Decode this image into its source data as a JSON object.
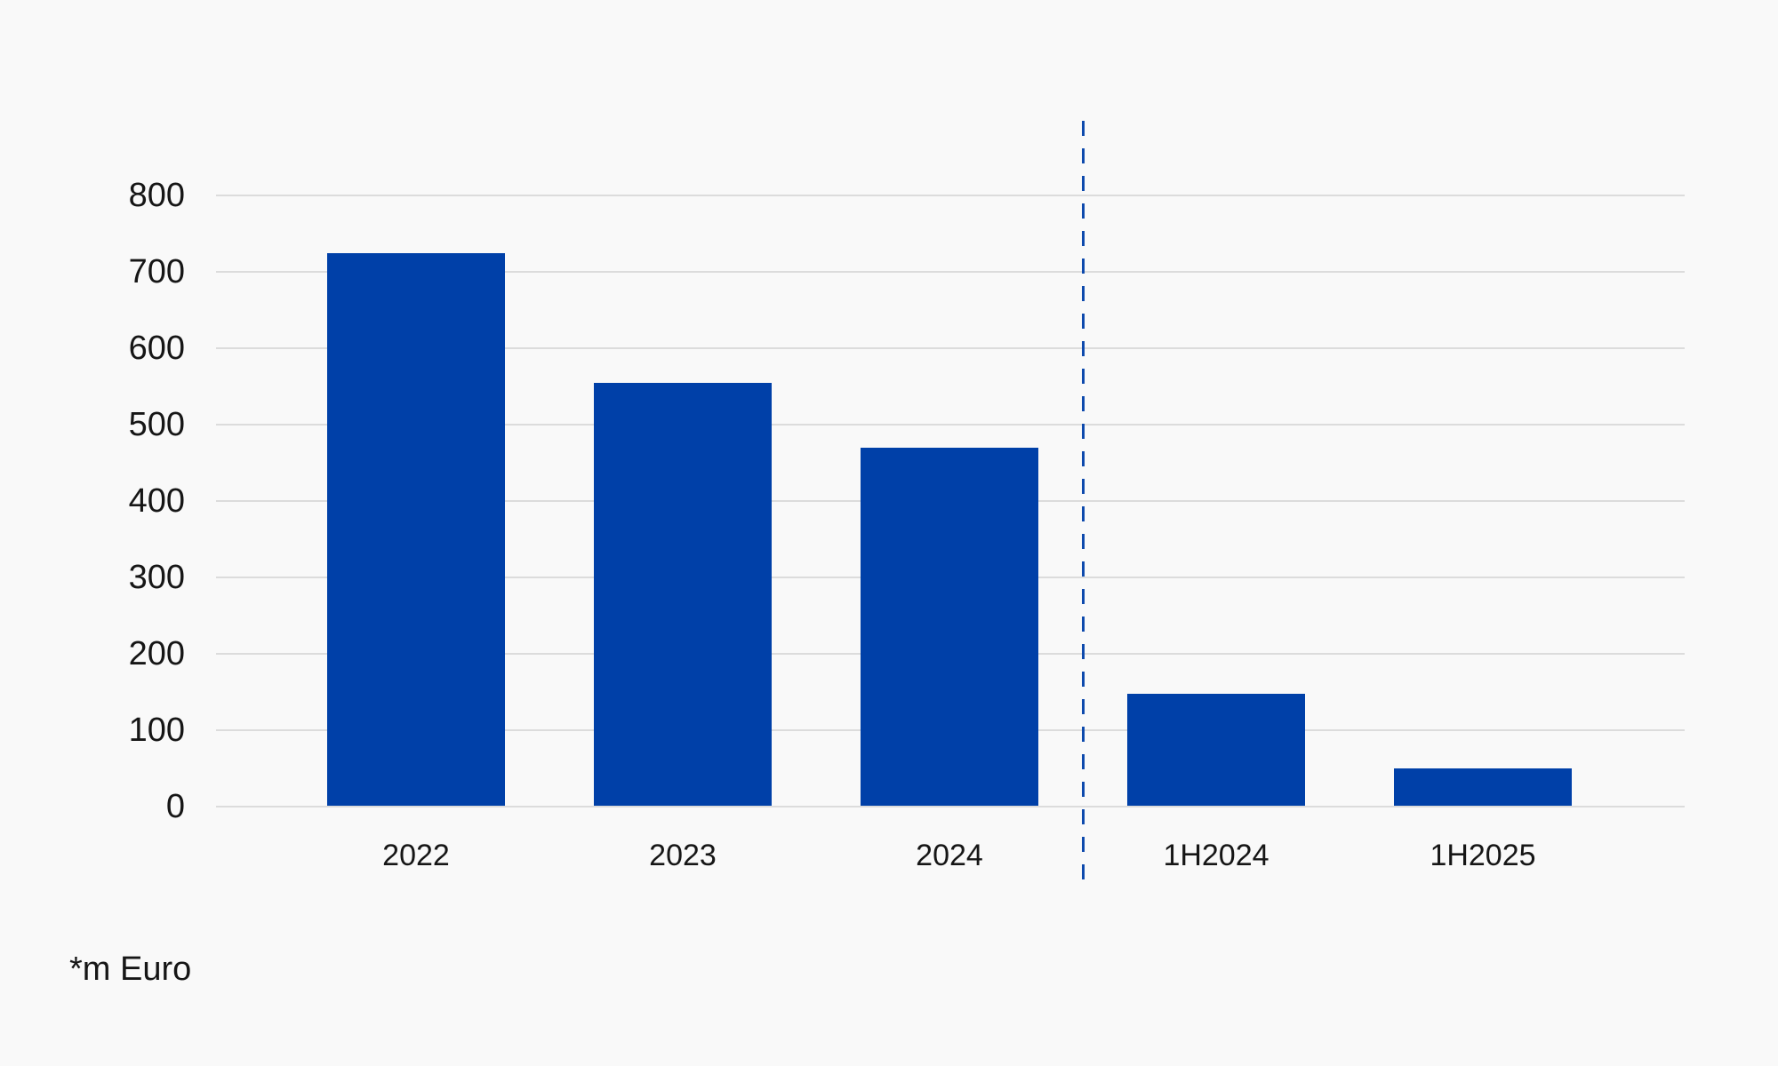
{
  "chart_data": {
    "type": "bar",
    "categories": [
      "2022",
      "2023",
      "2024",
      "1H2024",
      "1H2025"
    ],
    "values": [
      725,
      555,
      470,
      148,
      50
    ],
    "title": "",
    "xlabel": "",
    "ylabel": "",
    "ylim": [
      0,
      800
    ],
    "yticks": [
      0,
      100,
      200,
      300,
      400,
      500,
      600,
      700,
      800
    ],
    "grid": "horizontal-only",
    "legend": "none",
    "footnote": "*m Euro",
    "divider": {
      "after_category": "2024",
      "before_category": "1H2024",
      "style": "dashed-vertical"
    },
    "colors": {
      "bar": "#0040a8",
      "divider": "#0e4aad",
      "gridline": "#dcdcdc",
      "background": "#f9f9f9",
      "text": "#161616"
    }
  }
}
